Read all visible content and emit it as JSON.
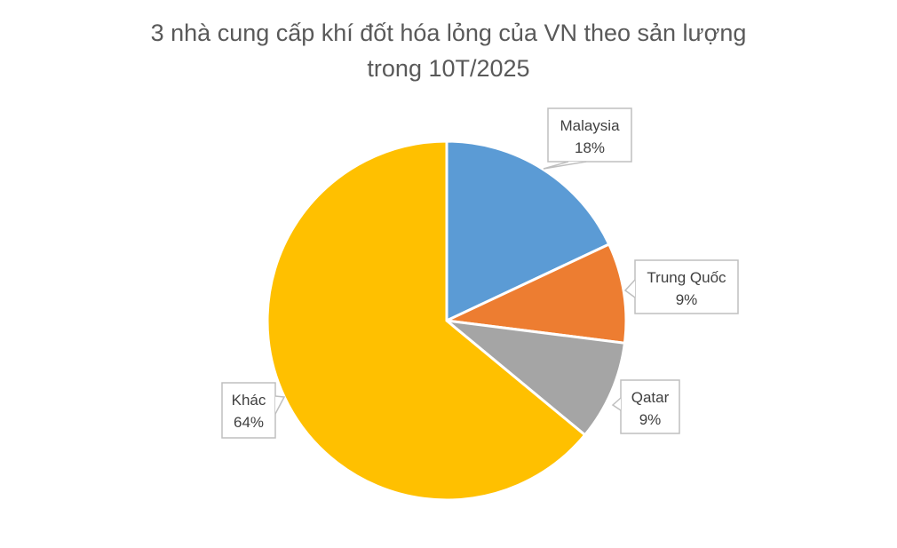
{
  "chart_data": {
    "type": "pie",
    "title": [
      "3 nhà cung cấp khí đốt hóa lỏng của VN theo sản lượng",
      "trong 10T/2025"
    ],
    "categories": [
      "Malaysia",
      "Trung Quốc",
      "Qatar",
      "Khác"
    ],
    "values": [
      18,
      9,
      9,
      64
    ],
    "value_labels": [
      "18%",
      "9%",
      "9%",
      "64%"
    ],
    "colors": [
      "#5B9BD5",
      "#ED7D31",
      "#A5A5A5",
      "#FFC000"
    ],
    "start_angle": "top, clockwise",
    "data_labels": "callouts with category name and percent",
    "legend": "none"
  }
}
